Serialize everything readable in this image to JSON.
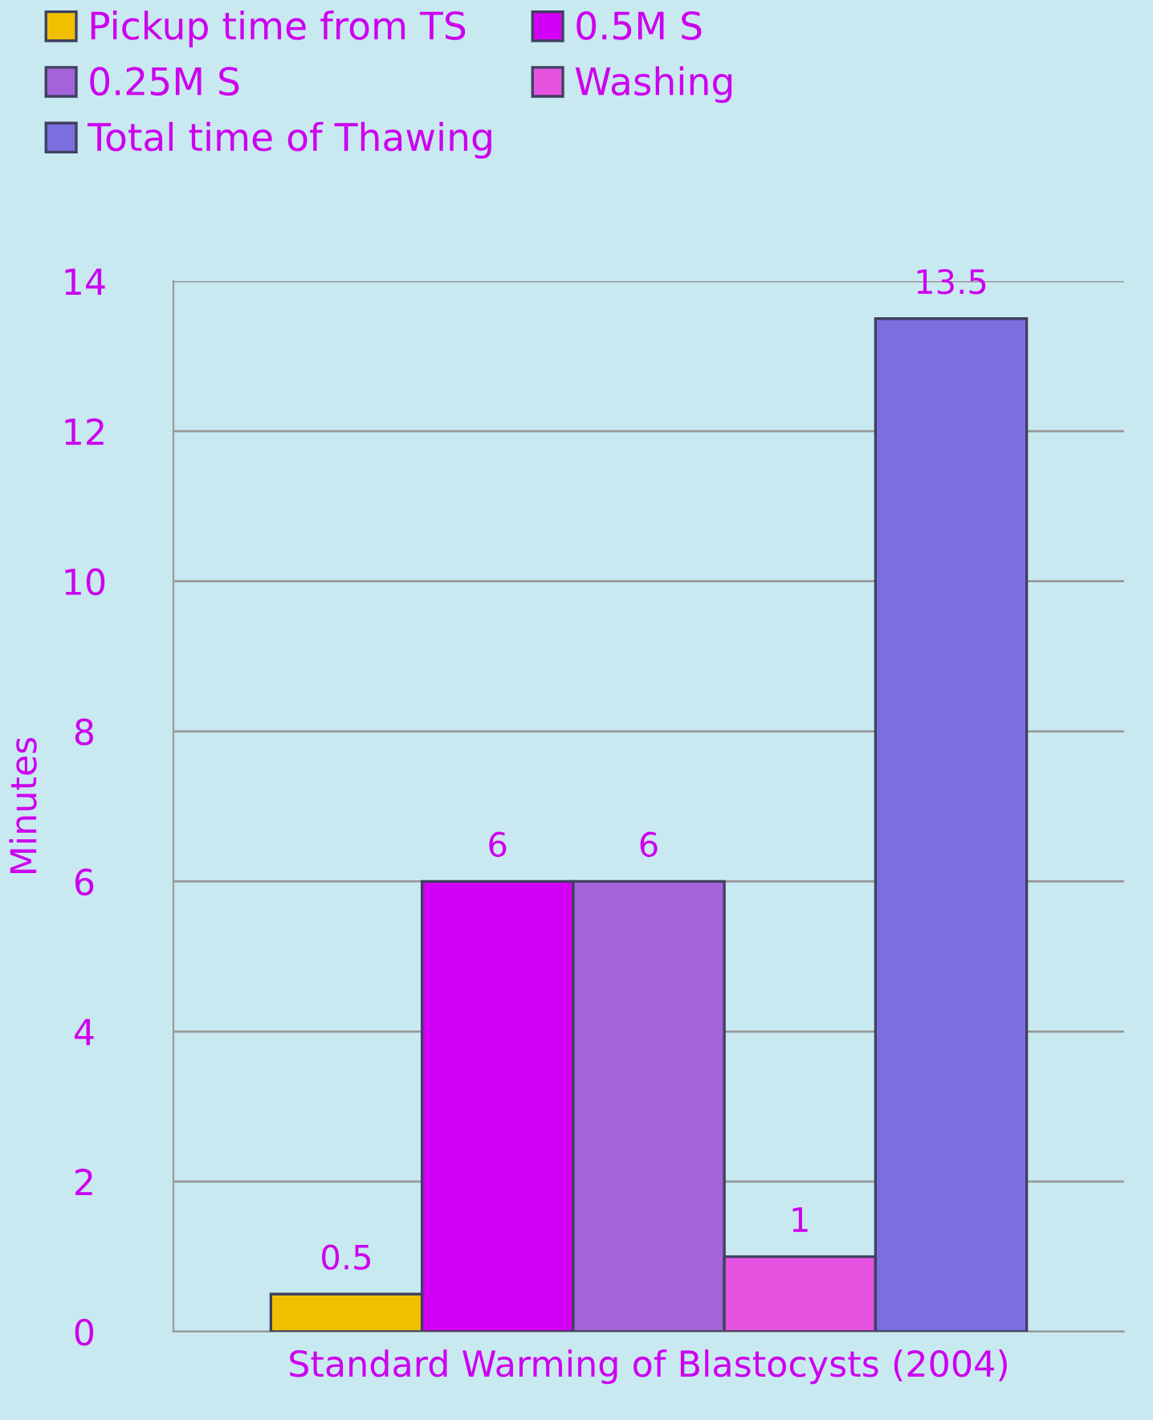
{
  "chart_data": {
    "type": "bar",
    "categories": [
      "Standard Warming of Blastocysts (2004)"
    ],
    "ylabel": "Minutes",
    "series": [
      {
        "name": "Pickup time from TS",
        "color": "#f0c000",
        "values": [
          0.5
        ]
      },
      {
        "name": "0.5M S",
        "color": "#d400f5",
        "values": [
          6
        ]
      },
      {
        "name": "0.25M S",
        "color": "#a463d9",
        "values": [
          6
        ]
      },
      {
        "name": "Washing",
        "color": "#e553e0",
        "values": [
          1
        ]
      },
      {
        "name": "Total time of Thawing",
        "color": "#7b6fe0",
        "values": [
          13.5
        ]
      }
    ],
    "ylim": [
      0,
      14
    ],
    "yticks": [
      0,
      2,
      4,
      6,
      8,
      10,
      12,
      14
    ],
    "grid": "y",
    "legend": "top",
    "data_labels": true
  }
}
